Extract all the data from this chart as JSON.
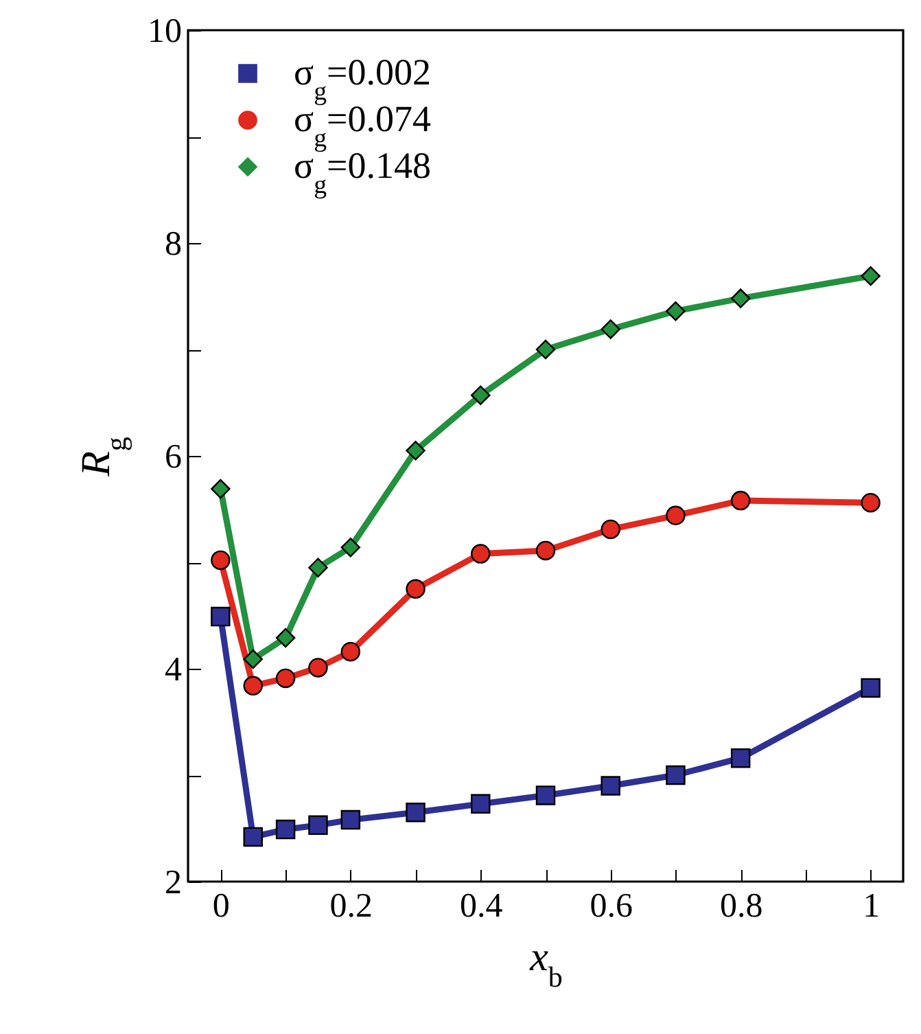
{
  "chart_data": {
    "type": "line",
    "xlabel": "x$_{b}$",
    "ylabel": "R$_{g}$",
    "x": [
      0,
      0.05,
      0.1,
      0.15,
      0.2,
      0.3,
      0.4,
      0.5,
      0.6,
      0.7,
      0.8,
      1.0
    ],
    "xlim": [
      -0.05,
      1.05
    ],
    "xticks": [
      0,
      {
        "value": 0.1,
        "label": null
      },
      0.2,
      {
        "value": 0.3,
        "label": null
      },
      0.4,
      {
        "value": 0.5,
        "label": null
      },
      0.6,
      {
        "value": 0.7,
        "label": null
      },
      0.8,
      {
        "value": 0.9,
        "label": null
      },
      1
    ],
    "ylim": [
      2,
      10
    ],
    "yticks": [
      2,
      {
        "value": 3,
        "label": null
      },
      4,
      {
        "value": 5,
        "label": null
      },
      6,
      {
        "value": 7,
        "label": null
      },
      8,
      {
        "value": 9,
        "label": null
      },
      10
    ],
    "grid": false,
    "legend": "top left",
    "line_style": "solid",
    "series": [
      {
        "name": "σ$_{g}$=0.002",
        "color": "#2e3192",
        "marker": "square",
        "values": [
          4.49,
          2.42,
          2.49,
          2.53,
          2.58,
          2.65,
          2.73,
          2.81,
          2.9,
          3.0,
          3.16,
          3.82
        ]
      },
      {
        "name": "σ$_{g}$=0.074",
        "color": "#e0291f",
        "marker": "circle",
        "values": [
          5.02,
          3.84,
          3.91,
          4.01,
          4.16,
          4.75,
          5.08,
          5.11,
          5.31,
          5.44,
          5.58,
          5.56
        ]
      },
      {
        "name": "σ$_{g}$=0.148",
        "color": "#23913e",
        "marker": "diamond",
        "values": [
          5.69,
          4.09,
          4.29,
          4.95,
          5.14,
          6.05,
          6.57,
          7.0,
          7.19,
          7.36,
          7.48,
          7.69
        ]
      }
    ]
  }
}
